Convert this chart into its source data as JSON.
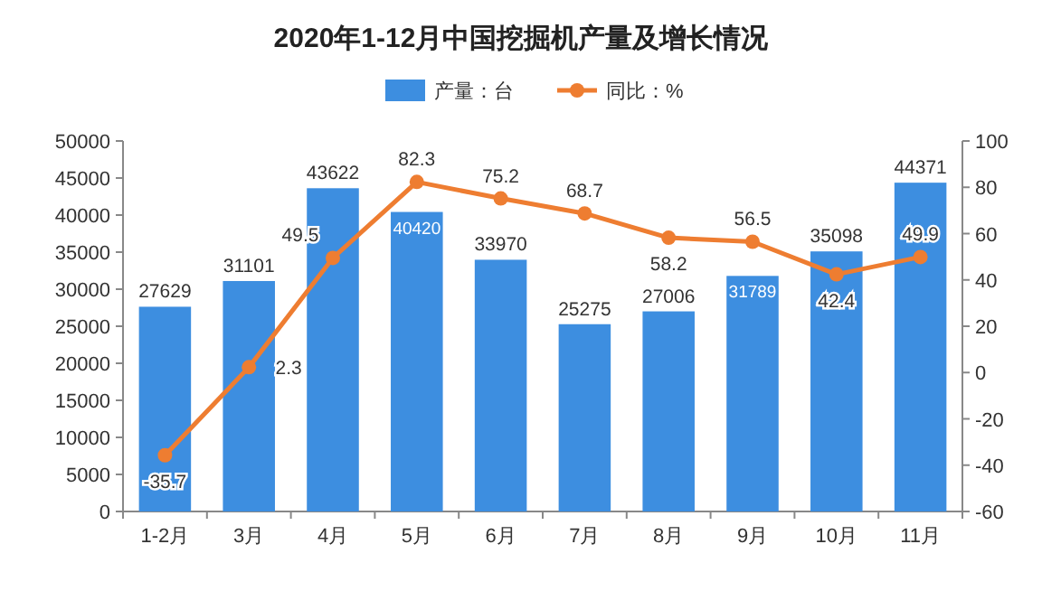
{
  "chart_data": {
    "type": "bar",
    "title": "2020年1-12月中国挖掘机产量及增长情况",
    "categories": [
      "1-2月",
      "3月",
      "4月",
      "5月",
      "6月",
      "7月",
      "8月",
      "9月",
      "10月",
      "11月"
    ],
    "series": [
      {
        "name": "产量：台",
        "type": "bar",
        "color": "#3d8ee0",
        "values": [
          27629,
          31101,
          43622,
          40420,
          33970,
          25275,
          27006,
          31789,
          35098,
          44371
        ]
      },
      {
        "name": "同比：%",
        "type": "line",
        "axis": "y2",
        "color": "#ee7d31",
        "values": [
          -35.7,
          2.3,
          49.5,
          82.3,
          75.2,
          68.7,
          58.2,
          56.5,
          42.4,
          49.9
        ]
      }
    ],
    "marker": "circle",
    "line_style": "solid",
    "ylim": [
      0,
      50000
    ],
    "yticks": [
      0,
      5000,
      10000,
      15000,
      20000,
      25000,
      30000,
      35000,
      40000,
      45000,
      50000
    ],
    "y2lim": [
      -60,
      100
    ],
    "y2ticks": [
      -60,
      -40,
      -20,
      0,
      20,
      40,
      60,
      80,
      100
    ],
    "legend": "top",
    "data_labels": true
  }
}
